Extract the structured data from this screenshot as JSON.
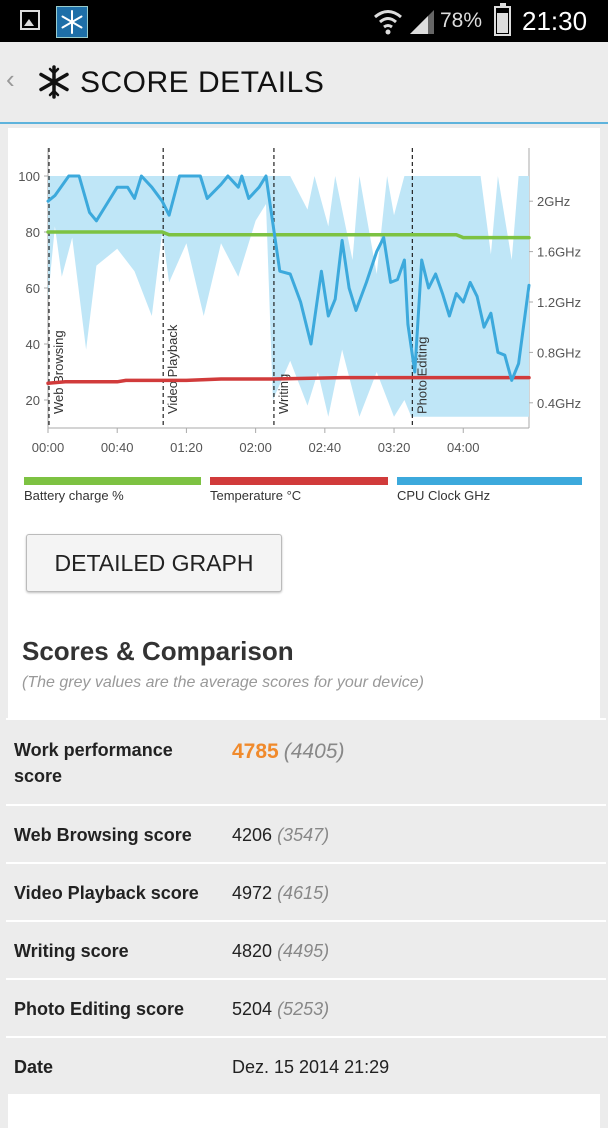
{
  "status_bar": {
    "battery_percent": "78%",
    "clock": "21:30",
    "icons": [
      "image-icon",
      "snowflake-app-icon",
      "wifi-icon",
      "signal-icon",
      "battery-icon"
    ]
  },
  "header": {
    "title": "SCORE DETAILS",
    "back_icon": "chevron-left-icon",
    "logo_icon": "snowflake-icon"
  },
  "chart_data": {
    "type": "line",
    "x_ticks": [
      "00:00",
      "00:40",
      "01:20",
      "02:00",
      "02:40",
      "03:20",
      "04:00"
    ],
    "y_left_ticks": [
      "100",
      "80",
      "60",
      "40",
      "20"
    ],
    "y_right_ticks": [
      "2GHz",
      "1.6GHz",
      "1.2GHz",
      "0.8GHz",
      "0.4GHz"
    ],
    "ylim_left": [
      10,
      110
    ],
    "xlim_minutes": [
      0,
      278
    ],
    "segments": [
      {
        "label": "Web Browsing",
        "start_minutes": 0
      },
      {
        "label": "Video Playback",
        "start_minutes": 66
      },
      {
        "label": "Writing",
        "start_minutes": 130
      },
      {
        "label": "Photo Editing",
        "start_minutes": 210
      }
    ],
    "series": [
      {
        "name": "Battery charge %",
        "color": "#7dc242",
        "points": [
          [
            0,
            80
          ],
          [
            66,
            80
          ],
          [
            70,
            79
          ],
          [
            130,
            79
          ],
          [
            210,
            79
          ],
          [
            236,
            79
          ],
          [
            240,
            78
          ],
          [
            278,
            78
          ]
        ]
      },
      {
        "name": "Temperature °C",
        "color": "#d13b3b",
        "points": [
          [
            0,
            26
          ],
          [
            10,
            26.5
          ],
          [
            40,
            26.5
          ],
          [
            45,
            27
          ],
          [
            80,
            27
          ],
          [
            100,
            27.5
          ],
          [
            130,
            27.5
          ],
          [
            170,
            28
          ],
          [
            210,
            28
          ],
          [
            278,
            28
          ]
        ]
      },
      {
        "name": "CPU Clock GHz",
        "color": "#3ca9dc",
        "points": [
          [
            0,
            91
          ],
          [
            4,
            93
          ],
          [
            12,
            100
          ],
          [
            18,
            100
          ],
          [
            24,
            87
          ],
          [
            28,
            84
          ],
          [
            34,
            90
          ],
          [
            40,
            96
          ],
          [
            46,
            96
          ],
          [
            50,
            92
          ],
          [
            54,
            100
          ],
          [
            60,
            96
          ],
          [
            66,
            91
          ],
          [
            70,
            86
          ],
          [
            76,
            100
          ],
          [
            88,
            100
          ],
          [
            92,
            92
          ],
          [
            100,
            97
          ],
          [
            104,
            100
          ],
          [
            110,
            96
          ],
          [
            112,
            100
          ],
          [
            116,
            92
          ],
          [
            122,
            96
          ],
          [
            126,
            100
          ],
          [
            130,
            83
          ],
          [
            134,
            66
          ],
          [
            140,
            65
          ],
          [
            146,
            55
          ],
          [
            152,
            40
          ],
          [
            158,
            66
          ],
          [
            162,
            50
          ],
          [
            166,
            56
          ],
          [
            170,
            77
          ],
          [
            174,
            60
          ],
          [
            178,
            52
          ],
          [
            184,
            62
          ],
          [
            190,
            73
          ],
          [
            194,
            78
          ],
          [
            198,
            62
          ],
          [
            202,
            63
          ],
          [
            206,
            70
          ],
          [
            208,
            47
          ],
          [
            212,
            30
          ],
          [
            216,
            70
          ],
          [
            220,
            60
          ],
          [
            224,
            65
          ],
          [
            228,
            58
          ],
          [
            232,
            50
          ],
          [
            236,
            58
          ],
          [
            240,
            55
          ],
          [
            244,
            62
          ],
          [
            248,
            57
          ],
          [
            252,
            46
          ],
          [
            256,
            51
          ],
          [
            260,
            37
          ],
          [
            264,
            36
          ],
          [
            268,
            27
          ],
          [
            272,
            33
          ],
          [
            278,
            61
          ]
        ],
        "band_upper": [
          [
            0,
            100
          ],
          [
            130,
            100
          ],
          [
            140,
            100
          ],
          [
            150,
            88
          ],
          [
            154,
            100
          ],
          [
            162,
            82
          ],
          [
            166,
            100
          ],
          [
            176,
            70
          ],
          [
            180,
            100
          ],
          [
            190,
            65
          ],
          [
            196,
            100
          ],
          [
            200,
            86
          ],
          [
            206,
            100
          ],
          [
            212,
            100
          ],
          [
            220,
            100
          ],
          [
            240,
            100
          ],
          [
            250,
            100
          ],
          [
            256,
            72
          ],
          [
            260,
            100
          ],
          [
            268,
            70
          ],
          [
            272,
            100
          ],
          [
            278,
            100
          ]
        ],
        "band_lower": [
          [
            0,
            56
          ],
          [
            4,
            82
          ],
          [
            8,
            64
          ],
          [
            14,
            78
          ],
          [
            22,
            38
          ],
          [
            28,
            68
          ],
          [
            40,
            74
          ],
          [
            50,
            66
          ],
          [
            60,
            50
          ],
          [
            66,
            80
          ],
          [
            70,
            62
          ],
          [
            80,
            76
          ],
          [
            90,
            50
          ],
          [
            100,
            76
          ],
          [
            110,
            64
          ],
          [
            120,
            84
          ],
          [
            126,
            90
          ],
          [
            130,
            20
          ],
          [
            140,
            34
          ],
          [
            150,
            18
          ],
          [
            156,
            30
          ],
          [
            162,
            14
          ],
          [
            170,
            38
          ],
          [
            180,
            14
          ],
          [
            190,
            30
          ],
          [
            200,
            14
          ],
          [
            206,
            20
          ],
          [
            210,
            14
          ],
          [
            278,
            14
          ]
        ]
      }
    ]
  },
  "legend": [
    {
      "label": "Battery charge %",
      "color": "#7dc242"
    },
    {
      "label": "Temperature °C",
      "color": "#d13b3b"
    },
    {
      "label": "CPU Clock GHz",
      "color": "#3ca9dc"
    }
  ],
  "detailed_graph_button": "DETAILED GRAPH",
  "scores": {
    "title": "Scores & Comparison",
    "subtitle": "(The grey values are the average scores for your device)",
    "rows": [
      {
        "label_line1": "Work performance",
        "label_line2": "score",
        "value": "4785",
        "average": "(4405)"
      },
      {
        "label": "Web Browsing score",
        "value": "4206",
        "average": "(3547)"
      },
      {
        "label": "Video Playback score",
        "value": "4972",
        "average": "(4615)"
      },
      {
        "label": "Writing score",
        "value": "4820",
        "average": "(4495)"
      },
      {
        "label": "Photo Editing score",
        "value": "5204",
        "average": "(5253)"
      },
      {
        "label": "Date",
        "value": "Dez. 15 2014 21:29"
      }
    ]
  }
}
